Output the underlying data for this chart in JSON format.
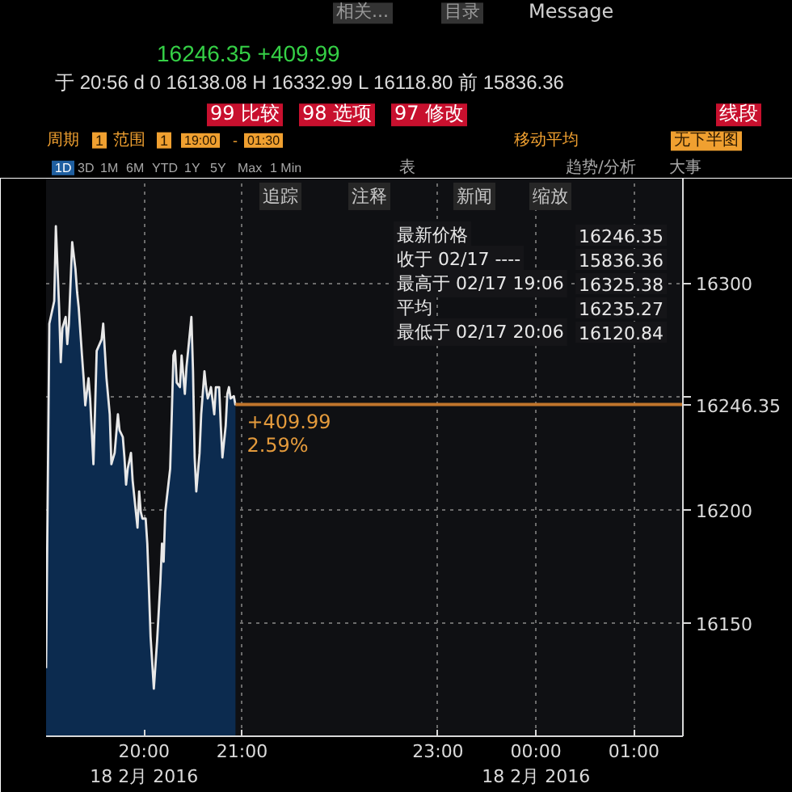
{
  "chart_data": {
    "type": "area",
    "title": "16246.35 +409.99",
    "subtitle": "于 20:56 d 0 16138.08 H 16332.99 L 16118.80 前 15836.36",
    "x": [
      "2016-02-17T19:00",
      "2016-02-17T19:02",
      "2016-02-17T19:05",
      "2016-02-17T19:06",
      "2016-02-17T19:08",
      "2016-02-17T19:09",
      "2016-02-17T19:10",
      "2016-02-17T19:12",
      "2016-02-17T19:13",
      "2016-02-17T19:14",
      "2016-02-17T19:16",
      "2016-02-17T19:18",
      "2016-02-17T19:19",
      "2016-02-17T19:20",
      "2016-02-17T19:22",
      "2016-02-17T19:23",
      "2016-02-17T19:24",
      "2016-02-17T19:26",
      "2016-02-17T19:27",
      "2016-02-17T19:29",
      "2016-02-17T19:30",
      "2016-02-17T19:31",
      "2016-02-17T19:34",
      "2016-02-17T19:35",
      "2016-02-17T19:36",
      "2016-02-17T19:37",
      "2016-02-17T19:39",
      "2016-02-17T19:40",
      "2016-02-17T19:42",
      "2016-02-17T19:44",
      "2016-02-17T19:45",
      "2016-02-17T19:47",
      "2016-02-17T19:48",
      "2016-02-17T19:49",
      "2016-02-17T19:50",
      "2016-02-17T19:52",
      "2016-02-17T19:53",
      "2016-02-17T19:55",
      "2016-02-17T19:56",
      "2016-02-17T19:57",
      "2016-02-17T19:58",
      "2016-02-17T19:59",
      "2016-02-17T20:01",
      "2016-02-17T20:02",
      "2016-02-17T20:03",
      "2016-02-17T20:04",
      "2016-02-17T20:06",
      "2016-02-17T20:08",
      "2016-02-17T20:10",
      "2016-02-17T20:11",
      "2016-02-17T20:12",
      "2016-02-17T20:13",
      "2016-02-17T20:16",
      "2016-02-17T20:17",
      "2016-02-17T20:18",
      "2016-02-17T20:19",
      "2016-02-17T20:20",
      "2016-02-17T20:22",
      "2016-02-17T20:23",
      "2016-02-17T20:25",
      "2016-02-17T20:26",
      "2016-02-17T20:27",
      "2016-02-17T20:29",
      "2016-02-17T20:30",
      "2016-02-17T20:31",
      "2016-02-17T20:32",
      "2016-02-17T20:34",
      "2016-02-17T20:35",
      "2016-02-17T20:37",
      "2016-02-17T20:38",
      "2016-02-17T20:39",
      "2016-02-17T20:40",
      "2016-02-17T20:41",
      "2016-02-17T20:43",
      "2016-02-17T20:44",
      "2016-02-17T20:46",
      "2016-02-17T20:47",
      "2016-02-17T20:48",
      "2016-02-17T20:50",
      "2016-02-17T20:51",
      "2016-02-17T20:52",
      "2016-02-17T20:53",
      "2016-02-17T20:55",
      "2016-02-17T20:56"
    ],
    "values": [
      16130,
      16282,
      16292,
      16325,
      16289,
      16265,
      16280,
      16285,
      16273,
      16282,
      16318,
      16306,
      16296,
      16289,
      16268,
      16258,
      16246,
      16258,
      16249,
      16220,
      16244,
      16270,
      16275,
      16282,
      16270,
      16258,
      16242,
      16220,
      16225,
      16242,
      16235,
      16232,
      16223,
      16211,
      16218,
      16225,
      16213,
      16199,
      16192,
      16208,
      16199,
      16196,
      16196,
      16185,
      16165,
      16144,
      16121,
      16142,
      16168,
      16185,
      16177,
      16199,
      16218,
      16242,
      16268,
      16270,
      16256,
      16254,
      16268,
      16251,
      16263,
      16270,
      16285,
      16261,
      16223,
      16208,
      16225,
      16242,
      16261,
      16254,
      16249,
      16251,
      16254,
      16242,
      16254,
      16254,
      16237,
      16223,
      16237,
      16251,
      16254,
      16249,
      16250,
      16246
    ],
    "color": "#0c2b4f",
    "xlim": [
      "2016-02-17T19:00",
      "2016-02-18T01:30"
    ],
    "xticks": [
      {
        "value": "2016-02-17T20:00",
        "label": "20:00\n18 2月 2016"
      },
      {
        "value": "2016-02-17T21:00",
        "label": "21:00"
      },
      {
        "value": "2016-02-17T23:00",
        "label": "23:00"
      },
      {
        "value": "2016-02-18T00:00",
        "label": "00:00\n18 2月 2016"
      },
      {
        "value": "2016-02-18T01:00",
        "label": "01:00"
      }
    ],
    "ylim": [
      16100,
      16346
    ],
    "yticks": [
      16150,
      16200,
      {
        "value": 16250,
        "label": null
      },
      16300
    ],
    "grid": true,
    "ref_lines": [
      {
        "axis": "y",
        "value": 16246.35,
        "label": "16246.35",
        "color": "#c0752c"
      }
    ],
    "annotations": [
      "相关...",
      "目录",
      "Message",
      "99 比较",
      "98 选项",
      "97 修改",
      "线段",
      "周期",
      "1",
      "范围",
      "1",
      "19:00",
      "-",
      "01:30",
      "移动平均",
      "无下半图",
      "1D",
      "3D",
      "1M",
      "6M",
      "YTD",
      "1Y",
      "5Y",
      "Max",
      "1 Min",
      "表",
      "趋势/分析",
      "大事",
      "追踪",
      "注释",
      "新闻",
      "缩放",
      "最新价格",
      "16246.35",
      "收于 02/17 ----",
      "15836.36",
      "最高于 02/17 19:06",
      "16325.38",
      "平均",
      "16235.27",
      "最低于 02/17 20:06",
      "16120.84",
      {
        "text": "+409.99",
        "x": "2016-02-17T20:56",
        "y": 16246.35
      },
      {
        "text": "2.59%",
        "x": "2016-02-17T20:56",
        "y": 16246.35
      }
    ]
  }
}
